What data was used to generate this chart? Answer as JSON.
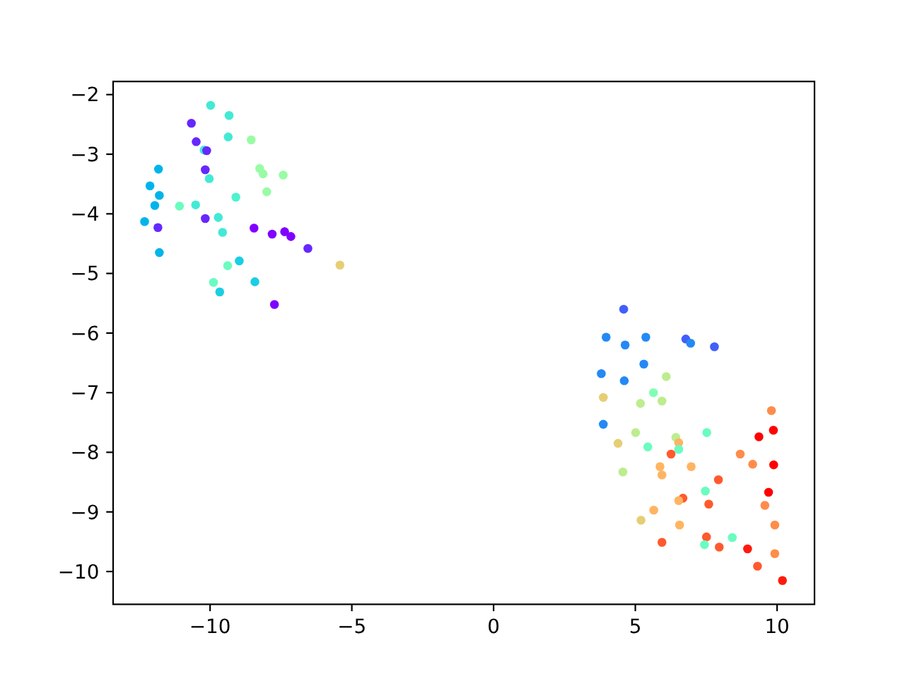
{
  "chart_data": {
    "type": "scatter",
    "marker": "circle",
    "x": [
      -9.98,
      -9.33,
      -10.66,
      -9.36,
      -8.55,
      -10.49,
      -10.21,
      -10.12,
      -10.17,
      -11.82,
      -8.25,
      -8.13,
      -7.42,
      -10.03,
      -12.12,
      -8.0,
      -11.79,
      -9.09,
      -11.95,
      -11.08,
      -10.51,
      -12.31,
      -10.17,
      -9.71,
      -11.84,
      -9.56,
      -8.45,
      -7.81,
      -7.37,
      -7.15,
      -6.55,
      -11.79,
      -5.42,
      -8.97,
      -9.38,
      -9.88,
      -8.42,
      -9.66,
      -7.73,
      4.59,
      3.97,
      5.37,
      4.64,
      6.78,
      6.95,
      7.79,
      5.3,
      6.09,
      3.8,
      4.61,
      5.64,
      3.87,
      5.18,
      5.94,
      9.8,
      3.87,
      9.87,
      9.36,
      7.52,
      5.01,
      6.43,
      6.53,
      4.39,
      6.53,
      5.44,
      6.26,
      8.7,
      9.14,
      9.88,
      5.87,
      6.97,
      5.94,
      4.56,
      7.93,
      7.47,
      9.7,
      6.68,
      6.53,
      7.59,
      9.57,
      5.65,
      5.2,
      9.92,
      6.56,
      7.51,
      8.42,
      7.44,
      5.94,
      7.96,
      8.96,
      9.92,
      9.31,
      10.19
    ],
    "values": [
      -2.18,
      -2.35,
      -2.48,
      -2.71,
      -2.76,
      -2.79,
      -2.93,
      -2.94,
      -3.26,
      -3.25,
      -3.24,
      -3.33,
      -3.35,
      -3.41,
      -3.53,
      -3.63,
      -3.69,
      -3.72,
      -3.86,
      -3.87,
      -3.85,
      -4.13,
      -4.08,
      -4.06,
      -4.23,
      -4.31,
      -4.24,
      -4.34,
      -4.3,
      -4.38,
      -4.58,
      -4.65,
      -4.86,
      -4.79,
      -4.87,
      -5.15,
      -5.14,
      -5.31,
      -5.52,
      -5.6,
      -6.07,
      -6.07,
      -6.2,
      -6.1,
      -6.17,
      -6.23,
      -6.52,
      -6.73,
      -6.68,
      -6.8,
      -7.0,
      -7.08,
      -7.18,
      -7.14,
      -7.3,
      -7.53,
      -7.63,
      -7.74,
      -7.67,
      -7.67,
      -7.75,
      -7.84,
      -7.85,
      -7.95,
      -7.91,
      -8.03,
      -8.03,
      -8.2,
      -8.21,
      -8.24,
      -8.24,
      -8.38,
      -8.33,
      -8.46,
      -8.65,
      -8.67,
      -8.77,
      -8.81,
      -8.87,
      -8.89,
      -8.97,
      -9.14,
      -9.22,
      -9.22,
      -9.42,
      -9.43,
      -9.55,
      -9.51,
      -9.59,
      -9.62,
      -9.7,
      -9.91,
      -10.15
    ],
    "colors": [
      "#42ead5",
      "#42ead5",
      "#6628fe",
      "#42ead5",
      "#99fca5",
      "#6628fe",
      "#42ead5",
      "#6628fe",
      "#6628fe",
      "#00b4eb",
      "#99fca5",
      "#99fca5",
      "#99fca5",
      "#42ead5",
      "#00b4eb",
      "#99fca5",
      "#00b4eb",
      "#4df3ce",
      "#00b4eb",
      "#6afcc0",
      "#42ead5",
      "#00b4eb",
      "#6628fe",
      "#42ead5",
      "#6628fe",
      "#42ead5",
      "#8000ff",
      "#8000ff",
      "#8000ff",
      "#8000ff",
      "#6628fe",
      "#00b4eb",
      "#e6ce74",
      "#1acee3",
      "#6afcc0",
      "#6afcc0",
      "#1acee3",
      "#1acee3",
      "#8000ff",
      "#425efa",
      "#2489f5",
      "#2489f5",
      "#2489f5",
      "#425efa",
      "#2489f5",
      "#425efa",
      "#2489f5",
      "#bded8f",
      "#2489f5",
      "#2489f5",
      "#80ffb4",
      "#e6ce74",
      "#bded8f",
      "#bded8f",
      "#ff8c4a",
      "#2489f5",
      "#ff0000",
      "#ff0000",
      "#6afcc0",
      "#bded8f",
      "#bded8f",
      "#ffb462",
      "#e6ce74",
      "#6afcc0",
      "#6afcc0",
      "#ff5a2d",
      "#ff8c4a",
      "#ff8c4a",
      "#ff0000",
      "#ffb462",
      "#ffb462",
      "#ffb462",
      "#bded8f",
      "#ff5a2d",
      "#6afcc0",
      "#ff0000",
      "#ff5a2d",
      "#ffb462",
      "#ff5a2d",
      "#ff8c4a",
      "#ffb462",
      "#e6ce74",
      "#ff8c4a",
      "#ffb462",
      "#ff5a2d",
      "#6afcc0",
      "#6afcc0",
      "#ff5a2d",
      "#ff5a2d",
      "#ff1a0d",
      "#ff8c4a",
      "#ff5a2d",
      "#ff1a0d"
    ],
    "xlim": [
      -13.42,
      11.32
    ],
    "ylim": [
      -10.55,
      -1.78
    ],
    "xticks": [
      {
        "value": -10,
        "label": "−10"
      },
      {
        "value": -5,
        "label": "−5"
      },
      {
        "value": 0,
        "label": "0"
      },
      {
        "value": 5,
        "label": "5"
      },
      {
        "value": 10,
        "label": "10"
      }
    ],
    "yticks": [
      {
        "value": -10,
        "label": "−10"
      },
      {
        "value": -9,
        "label": "−9"
      },
      {
        "value": -8,
        "label": "−8"
      },
      {
        "value": -7,
        "label": "−7"
      },
      {
        "value": -6,
        "label": "−6"
      },
      {
        "value": -5,
        "label": "−5"
      },
      {
        "value": -4,
        "label": "−4"
      },
      {
        "value": -3,
        "label": "−3"
      },
      {
        "value": -2,
        "label": "−2"
      }
    ]
  }
}
